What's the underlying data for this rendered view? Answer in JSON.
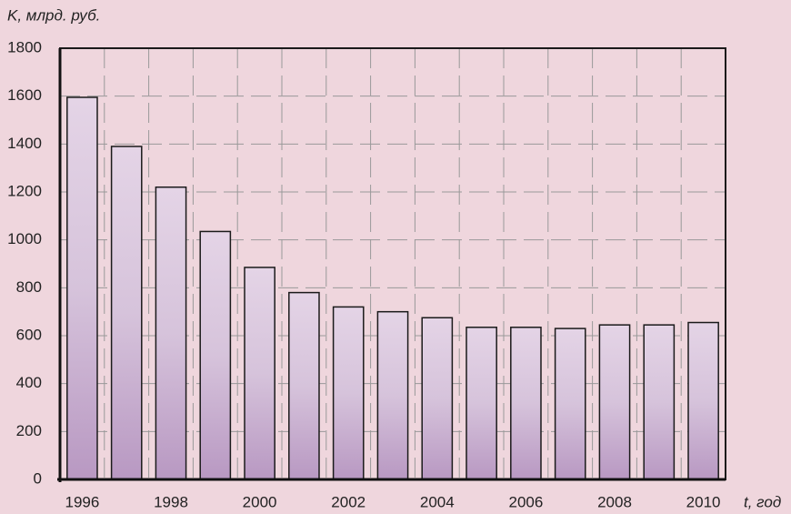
{
  "chart_data": {
    "type": "bar",
    "ylabel": "K, млрд. руб.",
    "xlabel": "t, год",
    "categories": [
      "1996",
      null,
      "1998",
      null,
      "2000",
      null,
      "2002",
      null,
      "2004",
      null,
      "2006",
      null,
      "2008",
      null,
      "2010"
    ],
    "values": [
      1595,
      1390,
      1220,
      1035,
      885,
      780,
      720,
      700,
      675,
      635,
      635,
      630,
      645,
      645,
      655
    ],
    "color": "#c9b2d2",
    "ylim": [
      0,
      1800
    ],
    "yticks": [
      0,
      200,
      400,
      600,
      800,
      1000,
      1200,
      1400,
      1600,
      1800
    ],
    "grid": true
  }
}
